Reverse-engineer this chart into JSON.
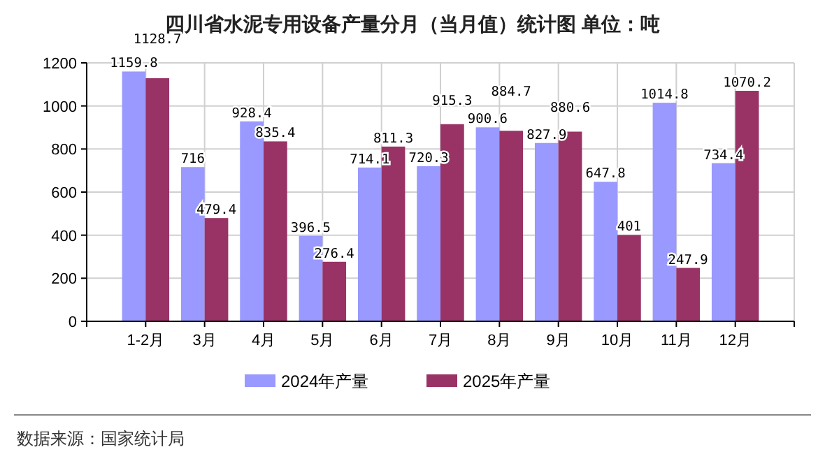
{
  "chart_data": {
    "type": "bar",
    "title": "四川省水泥专用设备产量分月（当月值）统计图 单位：吨",
    "categories": [
      "1-2月",
      "3月",
      "4月",
      "5月",
      "6月",
      "7月",
      "8月",
      "9月",
      "10月",
      "11月",
      "12月"
    ],
    "series": [
      {
        "name": "2024年产量",
        "color": "#9999ff",
        "values": [
          1159.8,
          716,
          928.4,
          396.5,
          714.1,
          720.3,
          900.6,
          827.9,
          647.8,
          1014.8,
          734.4
        ]
      },
      {
        "name": "2025年产量",
        "color": "#993366",
        "values": [
          1128.7,
          479.4,
          835.4,
          276.4,
          811.3,
          915.3,
          884.7,
          880.6,
          401,
          247.9,
          1070.2
        ]
      }
    ],
    "ylim": [
      0,
      1200
    ],
    "yticks": [
      0,
      200,
      400,
      600,
      800,
      1000,
      1200
    ],
    "grid": true,
    "legend": "bottom",
    "data_labels": true,
    "annotations": [
      "数据来源：国家统计局"
    ]
  }
}
